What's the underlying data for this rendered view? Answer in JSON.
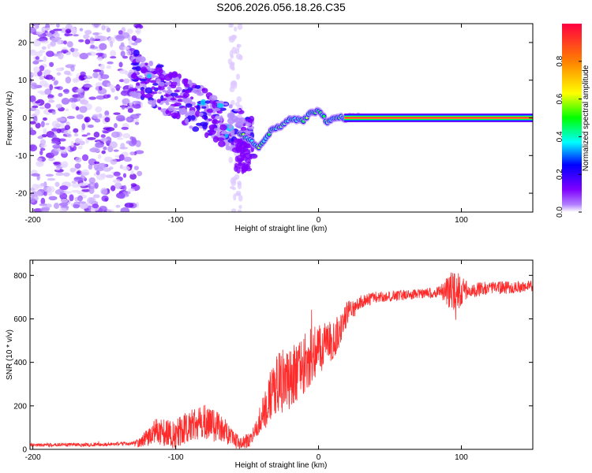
{
  "title": "S206.2026.056.18.26.C35",
  "chart_data": [
    {
      "type": "heatmap",
      "name": "spectrogram",
      "xlabel": "Height of straight line (km)",
      "ylabel": "Frequency (Hz)",
      "xlim": [
        -202,
        150
      ],
      "ylim": [
        -25,
        25
      ],
      "xticks": [
        -200,
        -100,
        0,
        100
      ],
      "yticks": [
        -20,
        -10,
        0,
        10,
        20
      ],
      "colorbar": {
        "label": "Normalized spectral amplitude",
        "range": [
          0,
          1
        ],
        "ticks": [
          0.0,
          0.2,
          0.4,
          0.6,
          0.8
        ],
        "tick_labels": [
          "0.0",
          "0.2",
          "0.4",
          "0.6",
          "0.8"
        ],
        "colors": [
          "#ffffff",
          "#7f00ff",
          "#0000ff",
          "#00ffff",
          "#00ff00",
          "#ffff00",
          "#ff8000",
          "#ff0000"
        ]
      },
      "features": {
        "noise_band_x": [
          -202,
          -125
        ],
        "diagonal_streak": {
          "x": [
            -130,
            -45
          ],
          "freq": [
            12,
            -6
          ]
        },
        "ridge_points": [
          [
            -55,
            -4
          ],
          [
            -48,
            -6
          ],
          [
            -42,
            -8
          ],
          [
            -38,
            -6
          ],
          [
            -32,
            -3
          ],
          [
            -25,
            -2
          ],
          [
            -18,
            0
          ],
          [
            -12,
            -1
          ],
          [
            -6,
            1
          ],
          [
            0,
            2
          ],
          [
            6,
            -1
          ],
          [
            12,
            0
          ],
          [
            20,
            0
          ],
          [
            30,
            0
          ],
          [
            150,
            0
          ]
        ],
        "steady_line_freq": 0
      }
    },
    {
      "type": "line",
      "name": "snr",
      "xlabel": "Height of straight line (km)",
      "ylabel": "SNR (10 * v/v)",
      "xlim": [
        -202,
        150
      ],
      "ylim": [
        0,
        870
      ],
      "xticks": [
        -200,
        -100,
        0,
        100
      ],
      "yticks": [
        0,
        200,
        400,
        600,
        800
      ],
      "color": "#ff2a2a",
      "envelope": {
        "x": [
          -202,
          -150,
          -125,
          -115,
          -100,
          -90,
          -80,
          -70,
          -60,
          -55,
          -48,
          -42,
          -35,
          -30,
          -25,
          -20,
          -15,
          -10,
          -5,
          0,
          5,
          10,
          15,
          20,
          30,
          40,
          60,
          80,
          90,
          95,
          100,
          120,
          150
        ],
        "y": [
          20,
          22,
          30,
          80,
          70,
          110,
          130,
          100,
          50,
          30,
          40,
          120,
          230,
          300,
          310,
          330,
          360,
          400,
          430,
          450,
          480,
          500,
          550,
          620,
          680,
          700,
          710,
          720,
          730,
          720,
          730,
          740,
          750
        ]
      },
      "noise_amplitude": {
        "x": [
          -202,
          -130,
          -115,
          -95,
          -75,
          -60,
          -45,
          -35,
          -25,
          -10,
          0,
          20,
          30,
          50,
          85,
          95,
          105,
          150
        ],
        "y": [
          8,
          8,
          60,
          70,
          80,
          40,
          30,
          120,
          150,
          140,
          120,
          60,
          30,
          25,
          25,
          110,
          35,
          25
        ]
      }
    }
  ]
}
